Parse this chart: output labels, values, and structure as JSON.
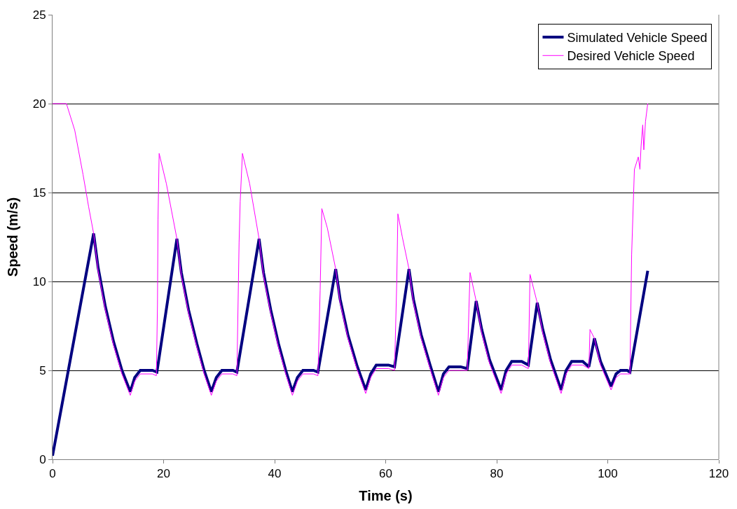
{
  "chart_data": {
    "type": "line",
    "xlabel": "Time (s)",
    "ylabel": "Speed (m/s)",
    "xlim": [
      0,
      120
    ],
    "xticks": [
      0,
      20,
      40,
      60,
      80,
      100,
      120
    ],
    "ylim": [
      0,
      25
    ],
    "yticks": [
      0,
      5,
      10,
      15,
      20,
      25
    ],
    "grid": "y",
    "legend": "top right",
    "marker": "none",
    "line_style": "solid",
    "series": [
      {
        "name": "Simulated Vehicle Speed",
        "color": "#000080",
        "x": [
          0,
          7.4,
          8.2,
          9.5,
          11,
          12.5,
          14,
          14.8,
          15.8,
          18,
          18.8,
          22.4,
          23.2,
          24.5,
          26,
          27.3,
          28.6,
          29.5,
          30.5,
          32.5,
          33.2,
          37.2,
          38,
          39.3,
          40.7,
          42,
          43.2,
          44.1,
          45.1,
          47,
          47.8,
          51,
          51.8,
          53.2,
          54.8,
          56.4,
          57.3,
          58.3,
          60.5,
          61.6,
          64.2,
          65,
          66.4,
          68,
          69.5,
          70.4,
          71.4,
          73.5,
          74.7,
          76.3,
          77.3,
          78.7,
          80.8,
          81.7,
          82.7,
          84.5,
          85.7,
          87.3,
          88.3,
          89.7,
          91.6,
          92.5,
          93.5,
          95.5,
          96.6,
          97.6,
          98.7,
          100.6,
          101.5,
          102.3,
          103.5,
          104,
          107.2
        ],
        "values": [
          0.2,
          12.7,
          10.8,
          8.6,
          6.6,
          5.0,
          3.8,
          4.6,
          5.0,
          5.0,
          4.9,
          12.4,
          10.5,
          8.4,
          6.5,
          5.0,
          3.8,
          4.6,
          5.0,
          5.0,
          4.9,
          12.4,
          10.5,
          8.4,
          6.5,
          5.0,
          3.8,
          4.6,
          5.0,
          5.0,
          4.9,
          10.7,
          9.0,
          7.0,
          5.3,
          3.9,
          4.8,
          5.3,
          5.3,
          5.2,
          10.7,
          9.0,
          7.0,
          5.3,
          3.8,
          4.8,
          5.2,
          5.2,
          5.1,
          8.9,
          7.3,
          5.6,
          3.9,
          5.0,
          5.5,
          5.5,
          5.3,
          8.8,
          7.3,
          5.6,
          3.9,
          5.0,
          5.5,
          5.5,
          5.2,
          6.8,
          5.5,
          4.1,
          4.8,
          5.0,
          5.0,
          4.9,
          10.6
        ]
      },
      {
        "name": "Desired Vehicle Speed",
        "color": "#ff00ff",
        "x": [
          0,
          2.5,
          4,
          5.5,
          6.5,
          7.4,
          8.2,
          9.5,
          11,
          12.5,
          14,
          14.8,
          15.8,
          18,
          18.7,
          18.9,
          19.0,
          19.2,
          20.5,
          22.4,
          23.2,
          24.5,
          26,
          27.3,
          28.6,
          29.5,
          30.5,
          32.5,
          33.2,
          33.6,
          33.8,
          34.2,
          35.5,
          37.2,
          38,
          39.3,
          40.7,
          42,
          43.2,
          44.1,
          45.1,
          47,
          47.8,
          48.2,
          48.5,
          49.5,
          51,
          51.8,
          53.2,
          54.8,
          56.4,
          57.3,
          58.3,
          60.5,
          61.6,
          62,
          62.2,
          63,
          64.2,
          65,
          66.4,
          68,
          69.5,
          70.4,
          71.4,
          73.5,
          74.7,
          75.0,
          75.2,
          76.3,
          77.3,
          78.7,
          80.8,
          81.7,
          82.7,
          84.5,
          85.7,
          86,
          87.3,
          88.3,
          89.7,
          91.6,
          92.5,
          93.5,
          95.5,
          96.6,
          96.8,
          97.6,
          98.7,
          100.6,
          101.5,
          102.3,
          103.5,
          104,
          104.3,
          104.8,
          105.5,
          105.8,
          106.0,
          106.3,
          106.5,
          106.8,
          107.2
        ],
        "values": [
          20,
          20,
          18.5,
          16,
          14.2,
          12.7,
          10.6,
          8.4,
          6.4,
          4.8,
          3.6,
          4.4,
          4.8,
          4.8,
          4.7,
          8.7,
          13.5,
          17.2,
          15.5,
          12.4,
          10.3,
          8.2,
          6.3,
          4.8,
          3.6,
          4.4,
          4.8,
          4.8,
          4.7,
          12.2,
          14.5,
          17.2,
          15.5,
          12.4,
          10.3,
          8.2,
          6.3,
          4.8,
          3.6,
          4.4,
          4.8,
          4.8,
          4.7,
          9.5,
          14.1,
          13.0,
          10.7,
          8.8,
          6.8,
          5.1,
          3.7,
          4.6,
          5.1,
          5.1,
          5.0,
          10.0,
          13.8,
          12.5,
          10.7,
          8.8,
          6.8,
          5.1,
          3.6,
          4.6,
          5.0,
          5.0,
          5.0,
          8.5,
          10.5,
          8.9,
          7.1,
          5.4,
          3.7,
          4.8,
          5.3,
          5.3,
          5.1,
          10.4,
          8.8,
          7.1,
          5.4,
          3.7,
          4.8,
          5.3,
          5.3,
          5.1,
          7.3,
          6.8,
          5.3,
          3.9,
          4.6,
          4.8,
          4.8,
          4.8,
          11.5,
          16.3,
          17.0,
          16.3,
          17.6,
          18.8,
          17.4,
          19.0,
          20
        ]
      }
    ]
  }
}
